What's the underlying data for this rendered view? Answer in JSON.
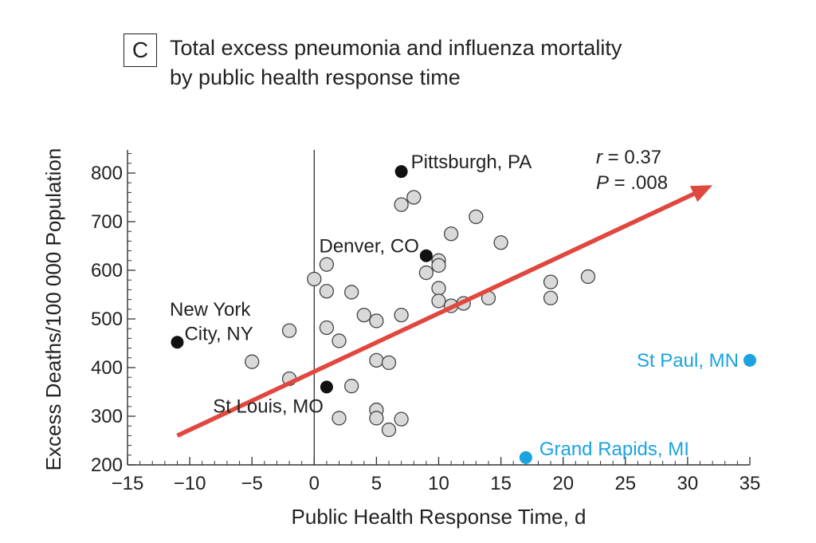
{
  "panel": {
    "letter": "C"
  },
  "chart_data": {
    "type": "scatter",
    "title_lines": [
      "Total excess pneumonia and influenza mortality",
      "by public health response time"
    ],
    "xlabel": "Public Health Response Time, d",
    "ylabel": "Excess Deaths/100 000 Population",
    "xlim": [
      -15,
      35
    ],
    "ylim": [
      200,
      850
    ],
    "x_ticks": [
      -15,
      -10,
      -5,
      0,
      5,
      10,
      15,
      20,
      25,
      30,
      35
    ],
    "x_tick_labels": [
      "−15",
      "−10",
      "−5",
      "0",
      "5",
      "10",
      "15",
      "20",
      "25",
      "30",
      "35"
    ],
    "y_ticks": [
      200,
      300,
      400,
      500,
      600,
      700,
      800
    ],
    "y_tick_labels": [
      "200",
      "300",
      "400",
      "500",
      "600",
      "700",
      "800"
    ],
    "vertical_reference_line_x": 0,
    "stats": {
      "r_label": "r",
      "r_value": " = 0.37",
      "p_label": "P",
      "p_value": " = .008"
    },
    "colors": {
      "gray_point": "#d9d9d9",
      "highlight_point": "#111111",
      "outlier_point": "#1aa3e0",
      "trend": "#e0483f",
      "axis": "#333333"
    },
    "gray_points": [
      {
        "x": 7,
        "y": 735
      },
      {
        "x": 8,
        "y": 750
      },
      {
        "x": 13,
        "y": 710
      },
      {
        "x": 11,
        "y": 675
      },
      {
        "x": 15,
        "y": 657
      },
      {
        "x": 1,
        "y": 612
      },
      {
        "x": 10,
        "y": 620
      },
      {
        "x": 10,
        "y": 610
      },
      {
        "x": 9,
        "y": 595
      },
      {
        "x": 0,
        "y": 582
      },
      {
        "x": 1,
        "y": 557
      },
      {
        "x": 3,
        "y": 555
      },
      {
        "x": 10,
        "y": 563
      },
      {
        "x": 19,
        "y": 576
      },
      {
        "x": 22,
        "y": 587
      },
      {
        "x": 14,
        "y": 543
      },
      {
        "x": 19,
        "y": 543
      },
      {
        "x": 10,
        "y": 537
      },
      {
        "x": 11,
        "y": 527
      },
      {
        "x": 12,
        "y": 532
      },
      {
        "x": 4,
        "y": 508
      },
      {
        "x": 7,
        "y": 508
      },
      {
        "x": 5,
        "y": 496
      },
      {
        "x": 1,
        "y": 482
      },
      {
        "x": -2,
        "y": 476
      },
      {
        "x": 2,
        "y": 455
      },
      {
        "x": -5,
        "y": 412
      },
      {
        "x": 5,
        "y": 415
      },
      {
        "x": 6,
        "y": 410
      },
      {
        "x": -2,
        "y": 377
      },
      {
        "x": 3,
        "y": 362
      },
      {
        "x": 5,
        "y": 313
      },
      {
        "x": 2,
        "y": 296
      },
      {
        "x": 5,
        "y": 296
      },
      {
        "x": 7,
        "y": 294
      },
      {
        "x": 6,
        "y": 272
      }
    ],
    "highlighted_points": [
      {
        "name": "Pittsburgh",
        "x": 7,
        "y": 803,
        "label": "Pittsburgh, PA"
      },
      {
        "name": "Denver",
        "x": 9,
        "y": 630,
        "label": "Denver, CO"
      },
      {
        "name": "New York",
        "x": -11,
        "y": 452,
        "label_lines": [
          "New York",
          "City, NY"
        ]
      },
      {
        "name": "St Louis",
        "x": 1,
        "y": 360,
        "label": "St Louis, MO"
      }
    ],
    "outlier_points": [
      {
        "name": "St Paul",
        "x": 35,
        "y": 415,
        "label": "St Paul, MN"
      },
      {
        "name": "Grand Rapids",
        "x": 17,
        "y": 215,
        "label": "Grand Rapids, MI"
      }
    ],
    "trend_line": {
      "x0": -11,
      "y0": 260,
      "x1": 32,
      "y1": 775
    }
  }
}
